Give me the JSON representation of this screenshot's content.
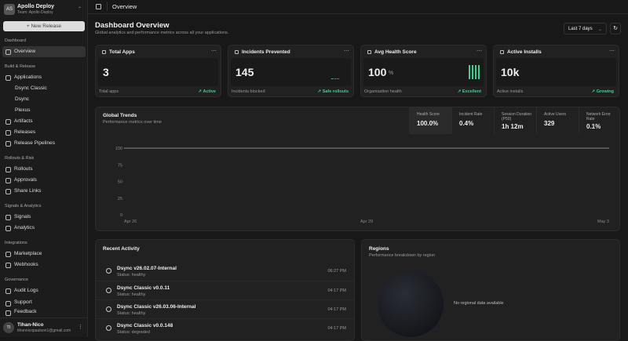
{
  "sidebar": {
    "workspace": {
      "initials": "AS",
      "name": "Apollo Deploy",
      "team": "Team: Apollo Deploy"
    },
    "new_release": "New Release",
    "sections": [
      {
        "title": "Dashboard",
        "items": [
          "Overview"
        ]
      },
      {
        "title": "Build & Release",
        "items": [
          "Applications",
          "Dsync Classic",
          "Dsync",
          "Plexus",
          "Artifacts",
          "Releases",
          "Release Pipelines"
        ]
      },
      {
        "title": "Rollouts & Risk",
        "items": [
          "Rollouts",
          "Approvals",
          "Share Links"
        ]
      },
      {
        "title": "Signals & Analytics",
        "items": [
          "Signals",
          "Analytics"
        ]
      },
      {
        "title": "Integrations",
        "items": [
          "Marketplace",
          "Webhooks"
        ]
      },
      {
        "title": "Governance",
        "items": [
          "Audit Logs"
        ]
      }
    ],
    "links": [
      "Support",
      "Feedback"
    ],
    "user": {
      "initials": "TI",
      "name": "Tihan-Nico",
      "email": "tihannicopaulson1@gmail.com"
    }
  },
  "topbar": {
    "title": "Overview"
  },
  "header": {
    "title": "Dashboard Overview",
    "subtitle": "Global analytics and performance metrics across all your applications.",
    "range": "Last 7 days"
  },
  "stats": [
    {
      "title": "Total Apps",
      "value": "3",
      "label": "Total apps",
      "status": "Active"
    },
    {
      "title": "Incidents Prevented",
      "value": "145",
      "label": "Incidents blocked",
      "status": "Safe rollouts"
    },
    {
      "title": "Avg Health Score",
      "value": "100",
      "unit": "%",
      "label": "Organisation health",
      "status": "Excellent"
    },
    {
      "title": "Active Installs",
      "value": "10k",
      "label": "Active installs",
      "status": "Growing"
    }
  ],
  "trends": {
    "title": "Global Trends",
    "subtitle": "Performance metrics over time",
    "metrics": [
      {
        "label": "Health Score",
        "value": "100.0%"
      },
      {
        "label": "Incident Rate",
        "value": "0.4%"
      },
      {
        "label": "Session Duration (P50)",
        "value": "1h 12m"
      },
      {
        "label": "Active Users",
        "value": "329"
      },
      {
        "label": "Network Error Rate",
        "value": "0.1%"
      }
    ],
    "chart": {
      "type": "line",
      "categories": [
        "Apr 26",
        "Apr 29",
        "May 3"
      ],
      "series": [
        {
          "color": "#8a8a8a",
          "values": [
            100,
            100,
            100
          ]
        }
      ],
      "ylim": [
        0,
        100
      ],
      "yticks": [
        0,
        25,
        50,
        75,
        100
      ]
    }
  },
  "activity": {
    "title": "Recent Activity",
    "items": [
      {
        "name": "Dsync v26.02.07-Internal",
        "status": "Status: healthy",
        "time": "06:27 PM"
      },
      {
        "name": "Dsync Classic v0.0.11",
        "status": "Status: healthy",
        "time": "04:17 PM"
      },
      {
        "name": "Dsync Classic v26.03.06-Internal",
        "status": "Status: healthy",
        "time": "04:17 PM"
      },
      {
        "name": "Dsync Classic v0.0.148",
        "status": "Status: degraded",
        "time": "04:17 PM"
      }
    ]
  },
  "regions": {
    "title": "Regions",
    "subtitle": "Performance breakdown by region",
    "empty": "No regional data available"
  }
}
